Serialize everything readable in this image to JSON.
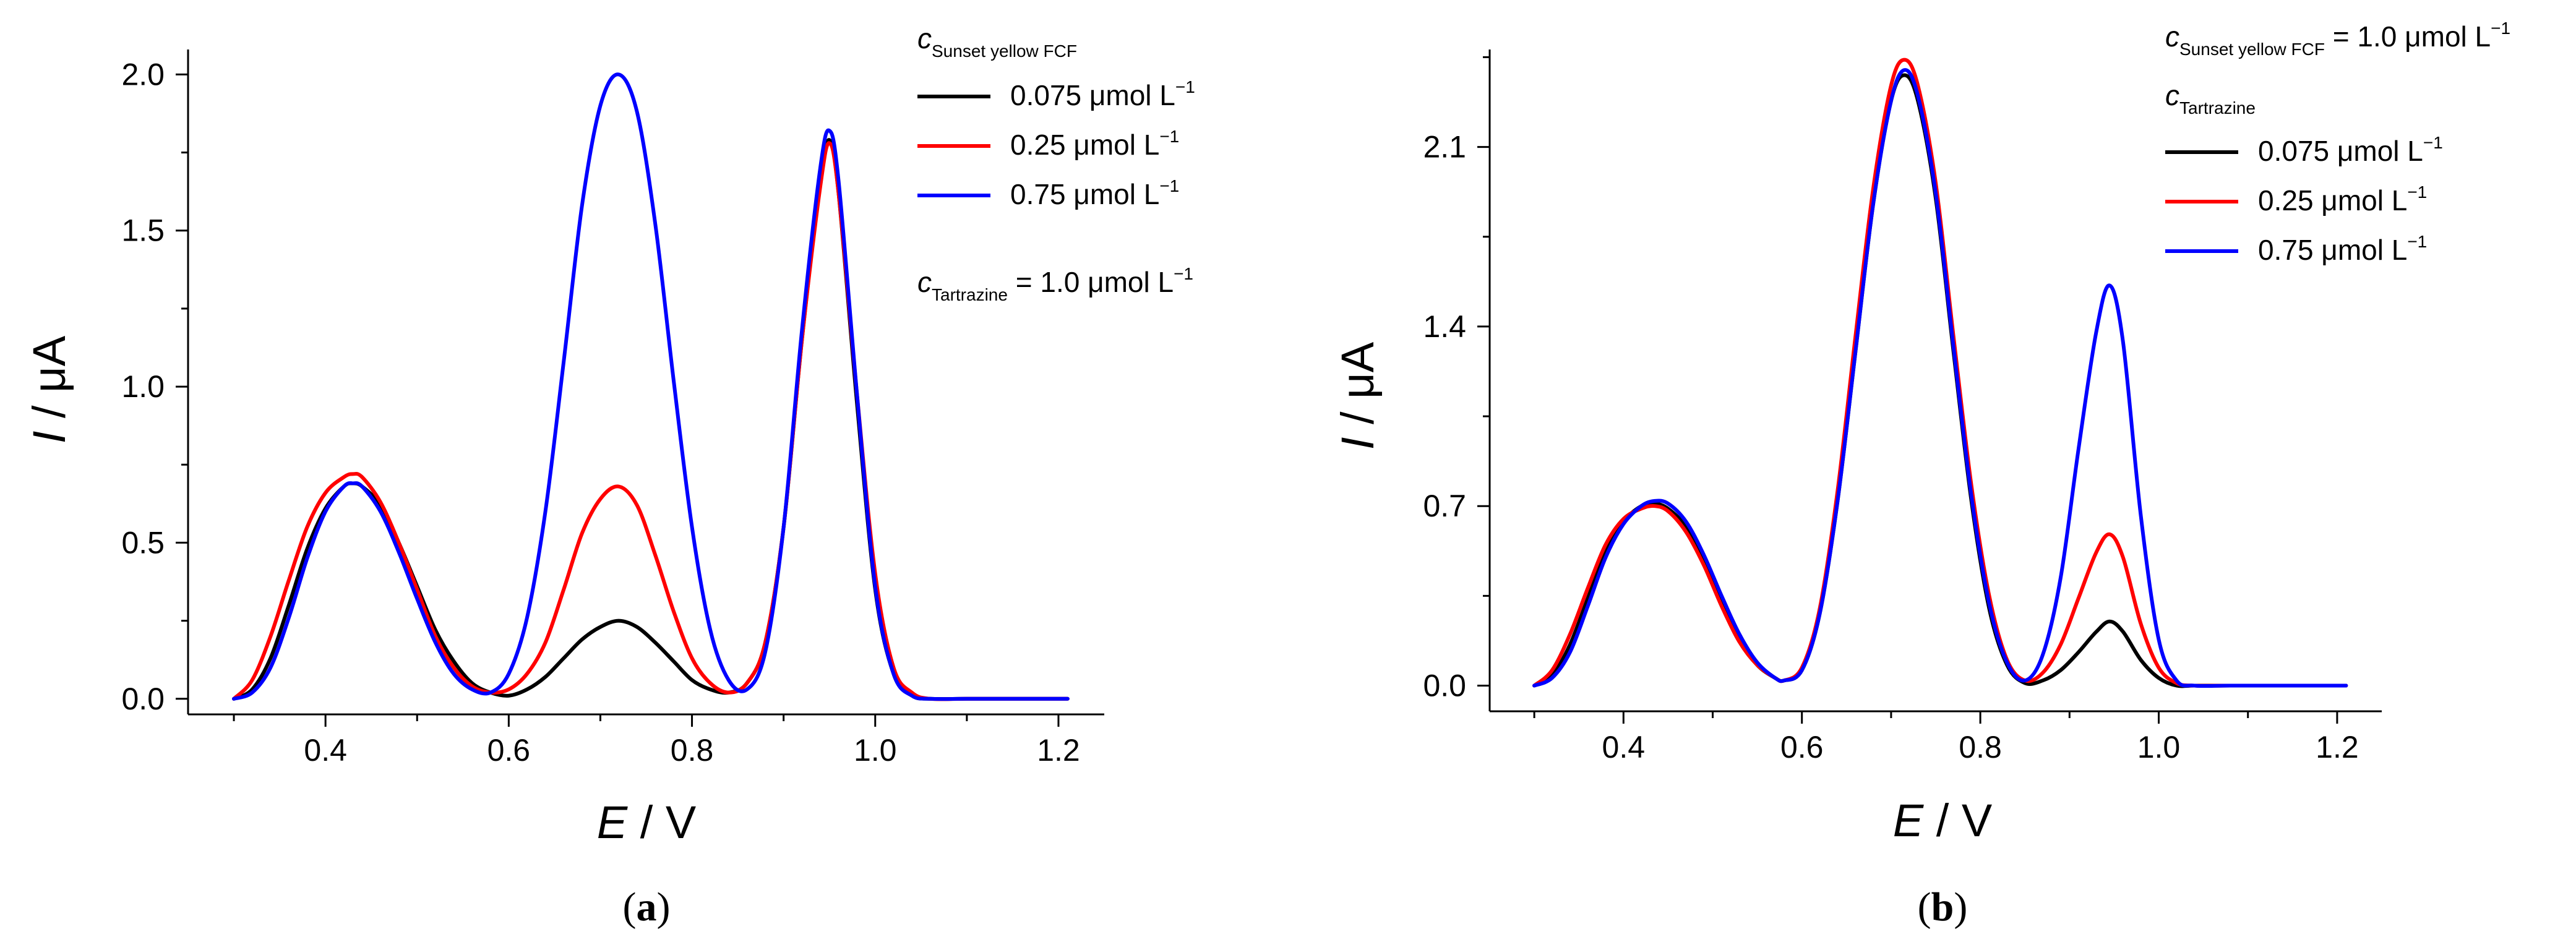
{
  "chart_data": [
    {
      "type": "line",
      "panel_label": "a",
      "xlabel": "E",
      "xlabel_unit": "V",
      "ylabel": "I",
      "ylabel_unit": "μA",
      "xlim": [
        0.25,
        1.25
      ],
      "ylim": [
        -0.05,
        2.08
      ],
      "xticks": [
        0.4,
        0.6,
        0.8,
        1.0,
        1.2
      ],
      "xtick_labels": [
        "0.4",
        "0.6",
        "0.8",
        "1.0",
        "1.2"
      ],
      "yticks": [
        0.0,
        0.5,
        1.0,
        1.5,
        2.0
      ],
      "ytick_labels": [
        "0.0",
        "0.5",
        "1.0",
        "1.5",
        "2.0"
      ],
      "legend_title": "c",
      "legend_title_sub": "Sunset yellow FCF",
      "legend_note": "c",
      "legend_note_sub": "Tartrazine",
      "legend_note_value": " = 1.0 μmol L",
      "unit_sup": "−1",
      "series": [
        {
          "name": "0.075 μmol L",
          "color": "#000000",
          "x": [
            0.3,
            0.32,
            0.34,
            0.36,
            0.38,
            0.4,
            0.42,
            0.43,
            0.44,
            0.46,
            0.48,
            0.5,
            0.52,
            0.54,
            0.56,
            0.58,
            0.6,
            0.62,
            0.64,
            0.66,
            0.68,
            0.7,
            0.72,
            0.74,
            0.76,
            0.78,
            0.8,
            0.82,
            0.84,
            0.86,
            0.88,
            0.9,
            0.92,
            0.94,
            0.95,
            0.96,
            0.98,
            1.0,
            1.02,
            1.04,
            1.06,
            1.1,
            1.15,
            1.21
          ],
          "y": [
            0.0,
            0.03,
            0.13,
            0.3,
            0.48,
            0.61,
            0.68,
            0.69,
            0.68,
            0.62,
            0.5,
            0.36,
            0.22,
            0.12,
            0.05,
            0.02,
            0.01,
            0.03,
            0.07,
            0.13,
            0.19,
            0.23,
            0.25,
            0.23,
            0.18,
            0.12,
            0.06,
            0.03,
            0.02,
            0.05,
            0.18,
            0.55,
            1.15,
            1.65,
            1.79,
            1.62,
            0.95,
            0.35,
            0.08,
            0.01,
            0.0,
            0.0,
            0.0,
            0.0
          ]
        },
        {
          "name": "0.25 μmol L",
          "color": "#ff0000",
          "x": [
            0.3,
            0.32,
            0.34,
            0.36,
            0.38,
            0.4,
            0.42,
            0.43,
            0.44,
            0.46,
            0.48,
            0.5,
            0.52,
            0.54,
            0.56,
            0.58,
            0.6,
            0.62,
            0.64,
            0.66,
            0.68,
            0.7,
            0.72,
            0.74,
            0.76,
            0.78,
            0.8,
            0.82,
            0.84,
            0.86,
            0.88,
            0.9,
            0.92,
            0.94,
            0.95,
            0.96,
            0.98,
            1.0,
            1.02,
            1.04,
            1.06,
            1.1,
            1.15,
            1.21
          ],
          "y": [
            0.0,
            0.06,
            0.2,
            0.38,
            0.55,
            0.66,
            0.71,
            0.72,
            0.71,
            0.63,
            0.5,
            0.35,
            0.2,
            0.1,
            0.04,
            0.02,
            0.03,
            0.08,
            0.18,
            0.35,
            0.53,
            0.64,
            0.68,
            0.62,
            0.46,
            0.28,
            0.13,
            0.05,
            0.02,
            0.05,
            0.18,
            0.55,
            1.15,
            1.64,
            1.78,
            1.62,
            0.98,
            0.4,
            0.1,
            0.02,
            0.0,
            0.0,
            0.0,
            0.0
          ]
        },
        {
          "name": "0.75 μmol L",
          "color": "#0000ff",
          "x": [
            0.3,
            0.32,
            0.34,
            0.36,
            0.38,
            0.4,
            0.42,
            0.43,
            0.44,
            0.46,
            0.48,
            0.5,
            0.52,
            0.54,
            0.56,
            0.58,
            0.6,
            0.62,
            0.64,
            0.66,
            0.68,
            0.7,
            0.72,
            0.74,
            0.76,
            0.78,
            0.8,
            0.82,
            0.84,
            0.86,
            0.88,
            0.9,
            0.92,
            0.94,
            0.95,
            0.96,
            0.98,
            1.0,
            1.02,
            1.04,
            1.06,
            1.1,
            1.15,
            1.21
          ],
          "y": [
            0.0,
            0.02,
            0.1,
            0.26,
            0.45,
            0.6,
            0.68,
            0.69,
            0.68,
            0.6,
            0.47,
            0.32,
            0.18,
            0.08,
            0.03,
            0.02,
            0.08,
            0.26,
            0.6,
            1.08,
            1.58,
            1.9,
            2.0,
            1.88,
            1.52,
            1.02,
            0.55,
            0.22,
            0.06,
            0.03,
            0.15,
            0.55,
            1.18,
            1.7,
            1.82,
            1.66,
            0.98,
            0.36,
            0.08,
            0.01,
            0.0,
            0.0,
            0.0,
            0.0
          ]
        }
      ]
    },
    {
      "type": "line",
      "panel_label": "b",
      "xlabel": "E",
      "xlabel_unit": "V",
      "ylabel": "I",
      "ylabel_unit": "μA",
      "xlim": [
        0.25,
        1.25
      ],
      "ylim": [
        -0.1,
        2.48
      ],
      "xticks": [
        0.4,
        0.6,
        0.8,
        1.0,
        1.2
      ],
      "xtick_labels": [
        "0.4",
        "0.6",
        "0.8",
        "1.0",
        "1.2"
      ],
      "yticks": [
        0.0,
        0.7,
        1.4,
        2.1
      ],
      "ytick_labels": [
        "0.0",
        "0.7",
        "1.4",
        "2.1"
      ],
      "legend_header": "c",
      "legend_header_sub": "Sunset yellow FCF",
      "legend_header_value": " = 1.0 μmol L",
      "legend_title": "c",
      "legend_title_sub": "Tartrazine",
      "unit_sup": "−1",
      "series": [
        {
          "name": "0.075 μmol L",
          "color": "#000000",
          "x": [
            0.3,
            0.32,
            0.34,
            0.36,
            0.38,
            0.4,
            0.42,
            0.435,
            0.45,
            0.47,
            0.49,
            0.51,
            0.53,
            0.55,
            0.57,
            0.58,
            0.6,
            0.62,
            0.64,
            0.66,
            0.68,
            0.7,
            0.715,
            0.73,
            0.75,
            0.77,
            0.79,
            0.81,
            0.83,
            0.85,
            0.87,
            0.89,
            0.91,
            0.93,
            0.945,
            0.96,
            0.98,
            1.0,
            1.02,
            1.04,
            1.08,
            1.15,
            1.21
          ],
          "y": [
            0.0,
            0.04,
            0.16,
            0.34,
            0.52,
            0.64,
            0.7,
            0.71,
            0.69,
            0.62,
            0.49,
            0.33,
            0.18,
            0.08,
            0.03,
            0.02,
            0.06,
            0.28,
            0.72,
            1.3,
            1.88,
            2.28,
            2.38,
            2.28,
            1.9,
            1.3,
            0.72,
            0.3,
            0.08,
            0.01,
            0.02,
            0.06,
            0.13,
            0.21,
            0.25,
            0.21,
            0.1,
            0.03,
            0.0,
            0.0,
            0.0,
            0.0,
            0.0
          ]
        },
        {
          "name": "0.25 μmol L",
          "color": "#ff0000",
          "x": [
            0.3,
            0.32,
            0.34,
            0.36,
            0.38,
            0.4,
            0.42,
            0.435,
            0.45,
            0.47,
            0.49,
            0.51,
            0.53,
            0.55,
            0.57,
            0.58,
            0.6,
            0.62,
            0.64,
            0.66,
            0.68,
            0.7,
            0.715,
            0.73,
            0.75,
            0.77,
            0.79,
            0.81,
            0.83,
            0.85,
            0.87,
            0.89,
            0.91,
            0.93,
            0.945,
            0.96,
            0.98,
            1.0,
            1.02,
            1.04,
            1.08,
            1.15,
            1.21
          ],
          "y": [
            0.0,
            0.06,
            0.2,
            0.38,
            0.55,
            0.65,
            0.69,
            0.7,
            0.68,
            0.6,
            0.47,
            0.31,
            0.17,
            0.08,
            0.03,
            0.02,
            0.07,
            0.3,
            0.76,
            1.36,
            1.94,
            2.34,
            2.44,
            2.34,
            1.96,
            1.36,
            0.78,
            0.35,
            0.1,
            0.02,
            0.05,
            0.16,
            0.34,
            0.52,
            0.59,
            0.5,
            0.24,
            0.07,
            0.01,
            0.0,
            0.0,
            0.0,
            0.0
          ]
        },
        {
          "name": "0.75 μmol L",
          "color": "#0000ff",
          "x": [
            0.3,
            0.32,
            0.34,
            0.36,
            0.38,
            0.4,
            0.42,
            0.435,
            0.45,
            0.47,
            0.49,
            0.51,
            0.53,
            0.55,
            0.57,
            0.58,
            0.6,
            0.62,
            0.64,
            0.66,
            0.68,
            0.7,
            0.715,
            0.73,
            0.75,
            0.77,
            0.79,
            0.81,
            0.83,
            0.85,
            0.87,
            0.89,
            0.91,
            0.93,
            0.945,
            0.96,
            0.98,
            1.0,
            1.02,
            1.04,
            1.08,
            1.15,
            1.21
          ],
          "y": [
            0.0,
            0.03,
            0.13,
            0.31,
            0.5,
            0.63,
            0.7,
            0.72,
            0.71,
            0.64,
            0.51,
            0.35,
            0.2,
            0.09,
            0.03,
            0.02,
            0.06,
            0.28,
            0.72,
            1.3,
            1.88,
            2.28,
            2.4,
            2.3,
            1.92,
            1.32,
            0.74,
            0.32,
            0.09,
            0.02,
            0.12,
            0.42,
            0.92,
            1.38,
            1.56,
            1.34,
            0.66,
            0.18,
            0.02,
            0.0,
            0.0,
            0.0,
            0.0
          ]
        }
      ]
    }
  ]
}
